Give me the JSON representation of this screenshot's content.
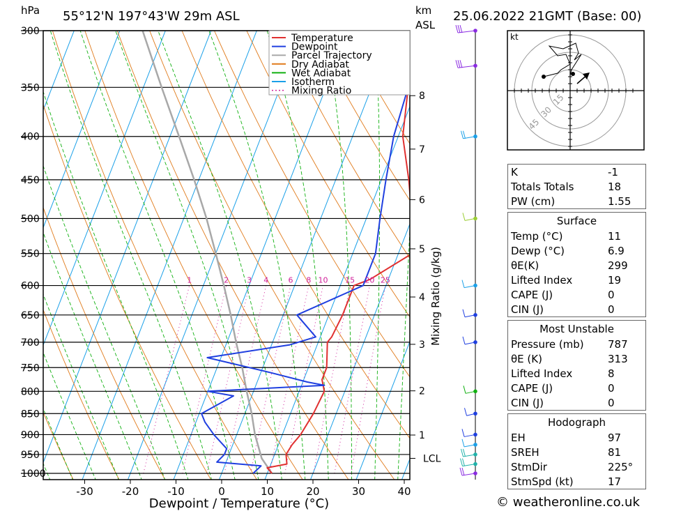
{
  "header": {
    "pressure_unit": "hPa",
    "location": "55°12'N  197°43'W  29m  ASL",
    "km_label": "km",
    "asl_label": "ASL",
    "datetime": "25.06.2022  21GMT  (Base: 00)"
  },
  "colors": {
    "temperature": "#e03030",
    "dewpoint": "#1f3fe0",
    "parcel": "#a8a8a8",
    "dry_adiabat": "#e07a1a",
    "wet_adiabat": "#10b010",
    "isotherm": "#1aa0e8",
    "mixing_ratio": "#d0209a"
  },
  "legend": [
    {
      "label": "Temperature",
      "key": "temperature",
      "style": "solid"
    },
    {
      "label": "Dewpoint",
      "key": "dewpoint",
      "style": "solid"
    },
    {
      "label": "Parcel Trajectory",
      "key": "parcel",
      "style": "solid"
    },
    {
      "label": "Dry Adiabat",
      "key": "dry_adiabat",
      "style": "solid"
    },
    {
      "label": "Wet Adiabat",
      "key": "wet_adiabat",
      "style": "solid"
    },
    {
      "label": "Isotherm",
      "key": "isotherm",
      "style": "solid"
    },
    {
      "label": "Mixing Ratio",
      "key": "mixing_ratio",
      "style": "dotted"
    }
  ],
  "chart_data": {
    "type": "line",
    "subtype": "skew-t log-p sounding",
    "xlabel": "Dewpoint / Temperature (°C)",
    "ylabel": "hPa",
    "right_axis_label": "Mixing Ratio (g/kg)",
    "x_ticks": [
      -30,
      -20,
      -10,
      0,
      10,
      20,
      30,
      40
    ],
    "pressure_levels": [
      300,
      350,
      400,
      450,
      500,
      550,
      600,
      650,
      700,
      750,
      800,
      850,
      900,
      950,
      1000
    ],
    "height_km_ticks": [
      "1",
      "2",
      "3",
      "4",
      "5",
      "6",
      "7",
      "8"
    ],
    "height_km_pressures": [
      901,
      799,
      704,
      619,
      543,
      475,
      414,
      358
    ],
    "lcl": {
      "label": "LCL",
      "pressure": 960
    },
    "mixing_ratio_labels": [
      "1",
      "2",
      "3",
      "4",
      "6",
      "8",
      "10",
      "15",
      "20",
      "25"
    ],
    "temperature": [
      {
        "p": 1000,
        "t": 11
      },
      {
        "p": 985,
        "t": 9.5
      },
      {
        "p": 975,
        "t": 13.5
      },
      {
        "p": 950,
        "t": 12.5
      },
      {
        "p": 925,
        "t": 13
      },
      {
        "p": 900,
        "t": 14
      },
      {
        "p": 850,
        "t": 15
      },
      {
        "p": 800,
        "t": 15.5
      },
      {
        "p": 775,
        "t": 14
      },
      {
        "p": 750,
        "t": 14
      },
      {
        "p": 700,
        "t": 12
      },
      {
        "p": 690,
        "t": 12.5
      },
      {
        "p": 650,
        "t": 13
      },
      {
        "p": 600,
        "t": 13
      },
      {
        "p": 590,
        "t": 16
      },
      {
        "p": 550,
        "t": 23
      },
      {
        "p": 525,
        "t": 24
      },
      {
        "p": 500,
        "t": 20
      },
      {
        "p": 450,
        "t": 16
      },
      {
        "p": 400,
        "t": 11
      },
      {
        "p": 350,
        "t": 8
      },
      {
        "p": 330,
        "t": 12
      },
      {
        "p": 300,
        "t": 8
      }
    ],
    "dewpoint": [
      {
        "p": 1000,
        "t": 6.9
      },
      {
        "p": 980,
        "t": 8
      },
      {
        "p": 970,
        "t": -2
      },
      {
        "p": 950,
        "t": -1
      },
      {
        "p": 935,
        "t": -1
      },
      {
        "p": 900,
        "t": -5
      },
      {
        "p": 870,
        "t": -8
      },
      {
        "p": 850,
        "t": -9.5
      },
      {
        "p": 810,
        "t": -4
      },
      {
        "p": 800,
        "t": -10
      },
      {
        "p": 787,
        "t": 15
      },
      {
        "p": 780,
        "t": 11
      },
      {
        "p": 760,
        "t": 2
      },
      {
        "p": 730,
        "t": -13
      },
      {
        "p": 705,
        "t": 4
      },
      {
        "p": 690,
        "t": 9
      },
      {
        "p": 650,
        "t": 3
      },
      {
        "p": 600,
        "t": 15
      },
      {
        "p": 550,
        "t": 15
      },
      {
        "p": 500,
        "t": 13
      },
      {
        "p": 450,
        "t": 11
      },
      {
        "p": 400,
        "t": 9
      },
      {
        "p": 350,
        "t": 8
      },
      {
        "p": 330,
        "t": 7
      },
      {
        "p": 300,
        "t": 6
      }
    ],
    "parcel": [
      {
        "p": 1000,
        "t": 11
      },
      {
        "p": 960,
        "t": 7.5
      },
      {
        "p": 900,
        "t": 4
      },
      {
        "p": 850,
        "t": 1.5
      },
      {
        "p": 800,
        "t": -1.5
      },
      {
        "p": 750,
        "t": -4.5
      },
      {
        "p": 700,
        "t": -8
      },
      {
        "p": 650,
        "t": -11.5
      },
      {
        "p": 600,
        "t": -15.5
      },
      {
        "p": 550,
        "t": -20
      },
      {
        "p": 500,
        "t": -25
      },
      {
        "p": 450,
        "t": -31
      },
      {
        "p": 400,
        "t": -38
      },
      {
        "p": 350,
        "t": -46
      },
      {
        "p": 300,
        "t": -55
      }
    ],
    "wind_profile": [
      {
        "p": 1000,
        "speed_kt": 18,
        "color": "#8a2be2"
      },
      {
        "p": 975,
        "speed_kt": 17,
        "color": "#20b2aa"
      },
      {
        "p": 950,
        "speed_kt": 15,
        "color": "#20b2aa"
      },
      {
        "p": 925,
        "speed_kt": 12,
        "color": "#1aa0e8"
      },
      {
        "p": 900,
        "speed_kt": 12,
        "color": "#1f3fe0"
      },
      {
        "p": 850,
        "speed_kt": 5,
        "color": "#1f3fe0"
      },
      {
        "p": 800,
        "speed_kt": 8,
        "color": "#10b010"
      },
      {
        "p": 700,
        "speed_kt": 10,
        "color": "#1f3fe0"
      },
      {
        "p": 650,
        "speed_kt": 10,
        "color": "#1f3fe0"
      },
      {
        "p": 600,
        "speed_kt": 12,
        "color": "#1aa0e8"
      },
      {
        "p": 500,
        "speed_kt": 10,
        "color": "#9acd32"
      },
      {
        "p": 400,
        "speed_kt": 15,
        "color": "#1aa0e8"
      },
      {
        "p": 330,
        "speed_kt": 30,
        "color": "#8a2be2"
      },
      {
        "p": 300,
        "speed_kt": 30,
        "color": "#8a2be2"
      }
    ],
    "hodograph": {
      "unit_label": "kt",
      "rings": [
        "15",
        "30",
        "45"
      ]
    }
  },
  "indices": {
    "top": [
      {
        "label": "K",
        "value": "-1"
      },
      {
        "label": "Totals Totals",
        "value": "18"
      },
      {
        "label": "PW (cm)",
        "value": "1.55"
      }
    ],
    "surface": {
      "title": "Surface",
      "rows": [
        {
          "label": "Temp (°C)",
          "value": "11"
        },
        {
          "label": "Dewp (°C)",
          "value": "6.9"
        },
        {
          "label": "θE(K)",
          "value": "299"
        },
        {
          "label": "Lifted Index",
          "value": "19"
        },
        {
          "label": "CAPE (J)",
          "value": "0"
        },
        {
          "label": "CIN (J)",
          "value": "0"
        }
      ]
    },
    "most_unstable": {
      "title": "Most Unstable",
      "rows": [
        {
          "label": "Pressure (mb)",
          "value": "787"
        },
        {
          "label": "θE (K)",
          "value": "313"
        },
        {
          "label": "Lifted Index",
          "value": "8"
        },
        {
          "label": "CAPE (J)",
          "value": "0"
        },
        {
          "label": "CIN (J)",
          "value": "0"
        }
      ]
    },
    "hodograph": {
      "title": "Hodograph",
      "rows": [
        {
          "label": "EH",
          "value": "97"
        },
        {
          "label": "SREH",
          "value": "81"
        },
        {
          "label": "StmDir",
          "value": "225°"
        },
        {
          "label": "StmSpd (kt)",
          "value": "17"
        }
      ]
    }
  },
  "footer": {
    "copyright": "© weatheronline.co.uk"
  }
}
